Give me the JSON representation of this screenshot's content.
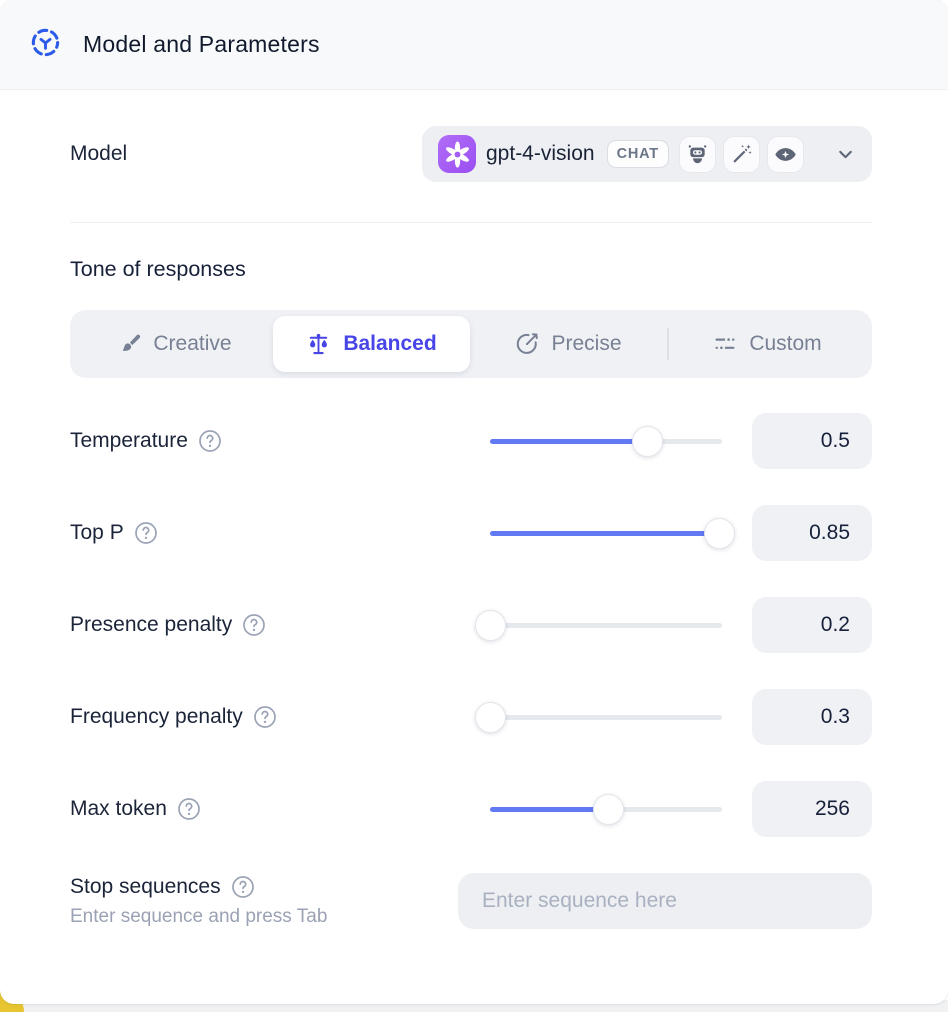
{
  "header": {
    "title": "Model and Parameters",
    "icon": "model-hub-icon"
  },
  "model": {
    "label": "Model",
    "selected": "gpt-4-vision",
    "provider_icon": "openai-logo-icon",
    "type_badge": "CHAT",
    "capabilities": [
      "robot-icon",
      "magic-wand-icon",
      "vision-eye-icon"
    ],
    "chevron": "chevron-down-icon"
  },
  "tone": {
    "heading": "Tone of responses",
    "options": [
      {
        "label": "Creative",
        "icon": "paintbrush-icon",
        "active": false
      },
      {
        "label": "Balanced",
        "icon": "balance-scale-icon",
        "active": true
      },
      {
        "label": "Precise",
        "icon": "target-icon",
        "active": false
      },
      {
        "label": "Custom",
        "icon": "sliders-icon",
        "active": false
      }
    ]
  },
  "parameters": [
    {
      "label": "Temperature",
      "value": "0.5",
      "slider_percent": 68
    },
    {
      "label": "Top P",
      "value": "0.85",
      "slider_percent": 99
    },
    {
      "label": "Presence penalty",
      "value": "0.2",
      "slider_percent": 0
    },
    {
      "label": "Frequency penalty",
      "value": "0.3",
      "slider_percent": 0
    },
    {
      "label": "Max token",
      "value": "256",
      "slider_percent": 51
    }
  ],
  "stop_sequences": {
    "label": "Stop sequences",
    "hint": "Enter sequence and press Tab",
    "placeholder": "Enter sequence here"
  },
  "colors": {
    "accent_indigo": "#4845e8",
    "slider_blue": "#6179f3",
    "openai_purple": "#a55ef3",
    "header_icon_blue": "#2d5be9",
    "icon_slate": "#5d6577"
  }
}
